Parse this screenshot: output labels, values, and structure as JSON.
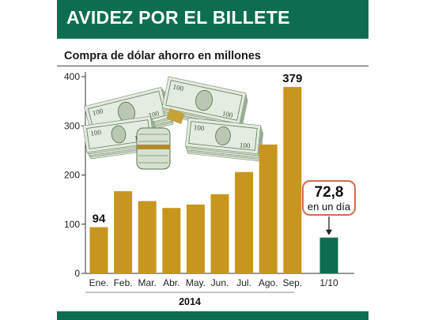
{
  "header": {
    "title": "AVIDEZ POR EL BILLETE"
  },
  "subtitle": "Compra de dólar ahorro en millones",
  "colors": {
    "header": "#0d6e4f",
    "bars": "#c8961e",
    "highlight_bar": "#0d6e4f",
    "callout_border": "#d96a4a"
  },
  "illustration": {
    "icon": "money-stacks-icon"
  },
  "chart_data": {
    "type": "bar",
    "title": "Compra de dólar ahorro en millones",
    "xlabel": "2014",
    "ylabel": "",
    "ylim": [
      0,
      400
    ],
    "yticks": [
      0,
      100,
      200,
      300,
      400
    ],
    "grid": false,
    "categories": [
      "Ene.",
      "Feb.",
      "Mar.",
      "Abr.",
      "May.",
      "Jun.",
      "Jul.",
      "Ago.",
      "Sep.",
      "1/10"
    ],
    "values": [
      94,
      167,
      147,
      133,
      140,
      161,
      206,
      262,
      379,
      72.8
    ],
    "data_labels": [
      {
        "category": "Ene.",
        "text": "94"
      },
      {
        "category": "Sep.",
        "text": "379"
      }
    ],
    "annotation": {
      "category": "1/10",
      "value": "72,8",
      "text": "en un día"
    }
  }
}
